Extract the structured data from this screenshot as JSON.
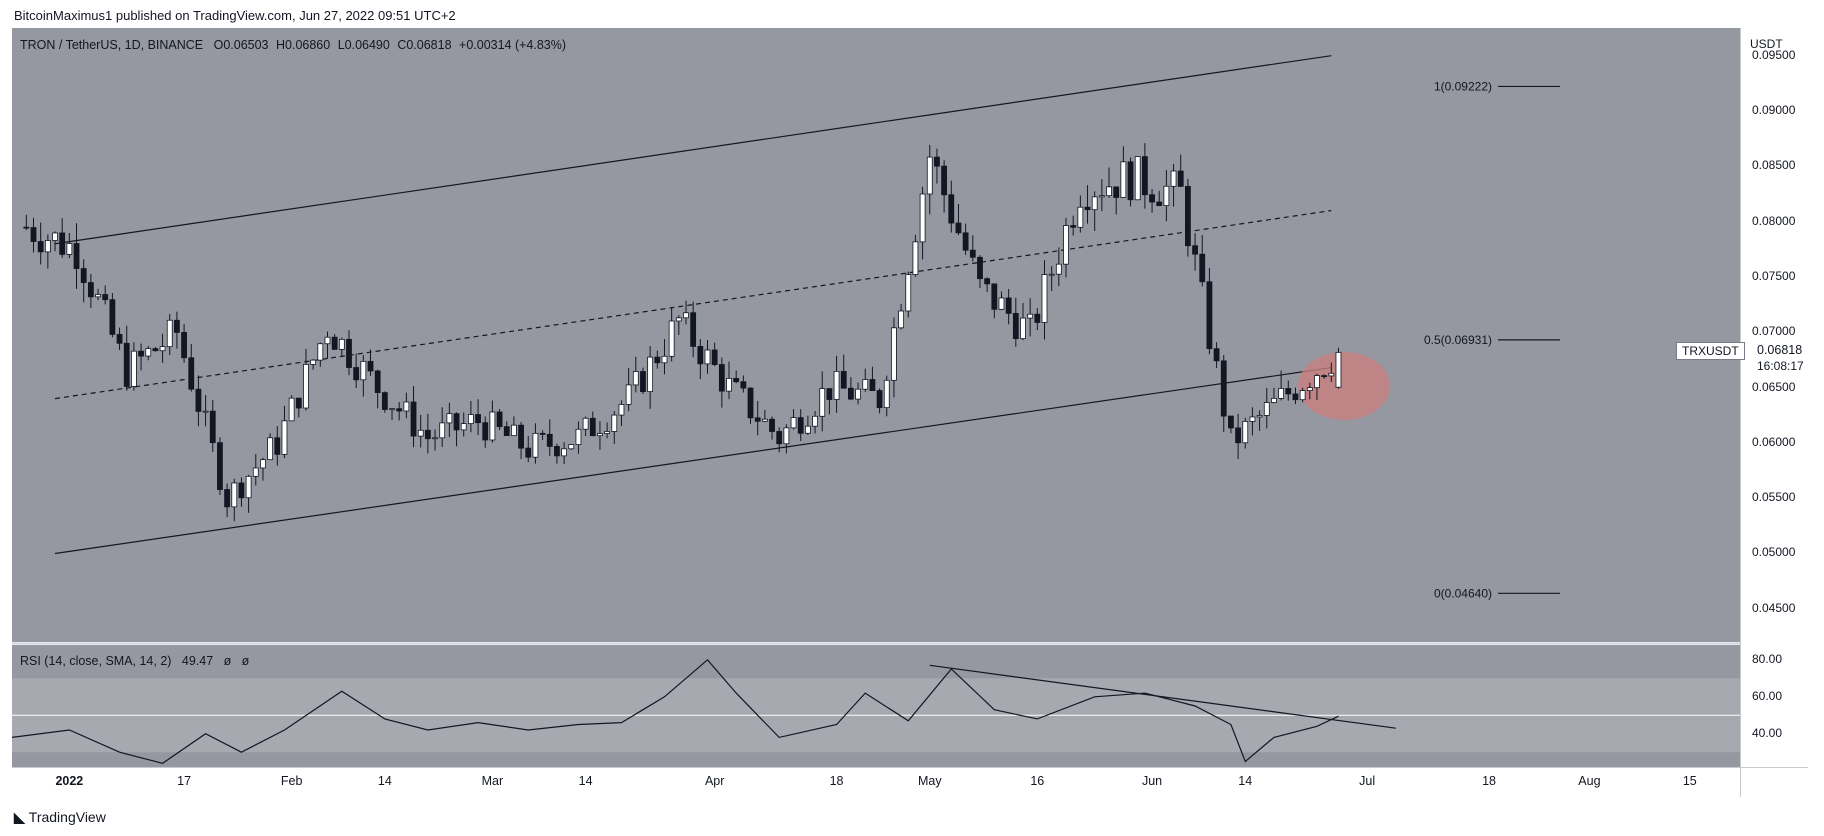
{
  "header": {
    "publisher": "BitcoinMaximus1 published on TradingView.com, Jun 27, 2022 09:51 UTC+2"
  },
  "legend": {
    "symbol": "TRON / TetherUS, 1D, BINANCE",
    "open_key": "O",
    "open": "0.06503",
    "high_key": "H",
    "high": "0.06860",
    "low_key": "L",
    "low": "0.06490",
    "close_key": "C",
    "close": "0.06818",
    "change": "+0.00314 (+4.83%)"
  },
  "price_axis": {
    "title": "USDT",
    "ticks": [
      "0.09500",
      "0.09000",
      "0.08500",
      "0.08000",
      "0.07500",
      "0.07000",
      "0.06500",
      "0.06000",
      "0.05500",
      "0.05000",
      "0.04500"
    ]
  },
  "last_price": {
    "symbol": "TRXUSDT",
    "value": "0.06818",
    "countdown": "16:08:17"
  },
  "rsi": {
    "label": "RSI (14, close, SMA, 14, 2)",
    "value": "49.47",
    "extra1": "ø",
    "extra2": "ø",
    "ticks": [
      "80.00",
      "60.00",
      "40.00"
    ]
  },
  "time_axis": [
    "2022",
    "17",
    "Feb",
    "14",
    "Mar",
    "14",
    "Apr",
    "18",
    "May",
    "16",
    "Jun",
    "14",
    "Jul",
    "18",
    "Aug",
    "15"
  ],
  "fib_labels": [
    "1(0.09222)",
    "0.5(0.06931)",
    "0(0.04640)"
  ],
  "footer": {
    "brand": "TradingView"
  },
  "colors": {
    "chart_bg": "#9598a1",
    "rsi_band": "#a3a6ae",
    "bull_candle": "#ffffff",
    "bear_candle": "#131722",
    "highlight": "#c98080"
  },
  "chart_data": [
    {
      "type": "candlestick",
      "title": "TRON / TetherUS, 1D, BINANCE",
      "ylabel": "USDT",
      "ylim": [
        0.042,
        0.0975
      ],
      "x_range": [
        "2021-12-24",
        "2022-08-22"
      ],
      "grid": false,
      "series": [
        {
          "name": "TRXUSDT",
          "weekly_closes": [
            [
              "2021-12-26",
              0.0795
            ],
            [
              "2022-01-02",
              0.0775
            ],
            [
              "2022-01-09",
              0.0665
            ],
            [
              "2022-01-16",
              0.07
            ],
            [
              "2022-01-23",
              0.055
            ],
            [
              "2022-01-30",
              0.06
            ],
            [
              "2022-02-06",
              0.0705
            ],
            [
              "2022-02-13",
              0.065
            ],
            [
              "2022-02-20",
              0.0605
            ],
            [
              "2022-02-27",
              0.062
            ],
            [
              "2022-03-06",
              0.0595
            ],
            [
              "2022-03-13",
              0.0605
            ],
            [
              "2022-03-20",
              0.064
            ],
            [
              "2022-03-27",
              0.071
            ],
            [
              "2022-04-03",
              0.065
            ],
            [
              "2022-04-10",
              0.0605
            ],
            [
              "2022-04-17",
              0.065
            ],
            [
              "2022-04-24",
              0.064
            ],
            [
              "2022-05-01",
              0.086
            ],
            [
              "2022-05-08",
              0.074
            ],
            [
              "2022-05-15",
              0.07
            ],
            [
              "2022-05-22",
              0.083
            ],
            [
              "2022-05-29",
              0.084
            ],
            [
              "2022-06-05",
              0.0825
            ],
            [
              "2022-06-12",
              0.06
            ],
            [
              "2022-06-19",
              0.064
            ],
            [
              "2022-06-27",
              0.06818
            ]
          ]
        }
      ],
      "annotations": {
        "channel_upper": [
          [
            "2021-12-30",
            0.078
          ],
          [
            "2022-06-26",
            0.095
          ]
        ],
        "channel_mid": [
          [
            "2021-12-30",
            0.064
          ],
          [
            "2022-06-26",
            0.081
          ]
        ],
        "channel_lower": [
          [
            "2021-12-30",
            0.05
          ],
          [
            "2022-06-26",
            0.0668
          ]
        ],
        "fib_levels": [
          {
            "level": "1",
            "value": 0.09222
          },
          {
            "level": "0.5",
            "value": 0.06931
          },
          {
            "level": "0",
            "value": 0.0464
          }
        ]
      }
    },
    {
      "type": "line",
      "title": "RSI (14, close, SMA, 14, 2)",
      "ylim": [
        22,
        88
      ],
      "bands": [
        30,
        50,
        70
      ],
      "series": [
        {
          "name": "RSI",
          "points": [
            [
              "2021-12-24",
              38
            ],
            [
              "2022-01-01",
              42
            ],
            [
              "2022-01-08",
              30
            ],
            [
              "2022-01-14",
              24
            ],
            [
              "2022-01-20",
              40
            ],
            [
              "2022-01-25",
              30
            ],
            [
              "2022-01-31",
              42
            ],
            [
              "2022-02-08",
              63
            ],
            [
              "2022-02-14",
              48
            ],
            [
              "2022-02-20",
              42
            ],
            [
              "2022-02-27",
              46
            ],
            [
              "2022-03-06",
              42
            ],
            [
              "2022-03-13",
              45
            ],
            [
              "2022-03-19",
              46
            ],
            [
              "2022-03-25",
              60
            ],
            [
              "2022-03-31",
              80
            ],
            [
              "2022-04-04",
              62
            ],
            [
              "2022-04-10",
              38
            ],
            [
              "2022-04-18",
              45
            ],
            [
              "2022-04-22",
              62
            ],
            [
              "2022-04-28",
              47
            ],
            [
              "2022-05-04",
              75
            ],
            [
              "2022-05-10",
              53
            ],
            [
              "2022-05-16",
              48
            ],
            [
              "2022-05-24",
              60
            ],
            [
              "2022-05-31",
              62
            ],
            [
              "2022-06-07",
              55
            ],
            [
              "2022-06-12",
              45
            ],
            [
              "2022-06-14",
              25
            ],
            [
              "2022-06-18",
              38
            ],
            [
              "2022-06-24",
              44
            ],
            [
              "2022-06-27",
              49.47
            ]
          ]
        }
      ],
      "annotations": {
        "trendline": [
          [
            "2022-05-01",
            77
          ],
          [
            "2022-07-05",
            43
          ]
        ]
      }
    }
  ]
}
